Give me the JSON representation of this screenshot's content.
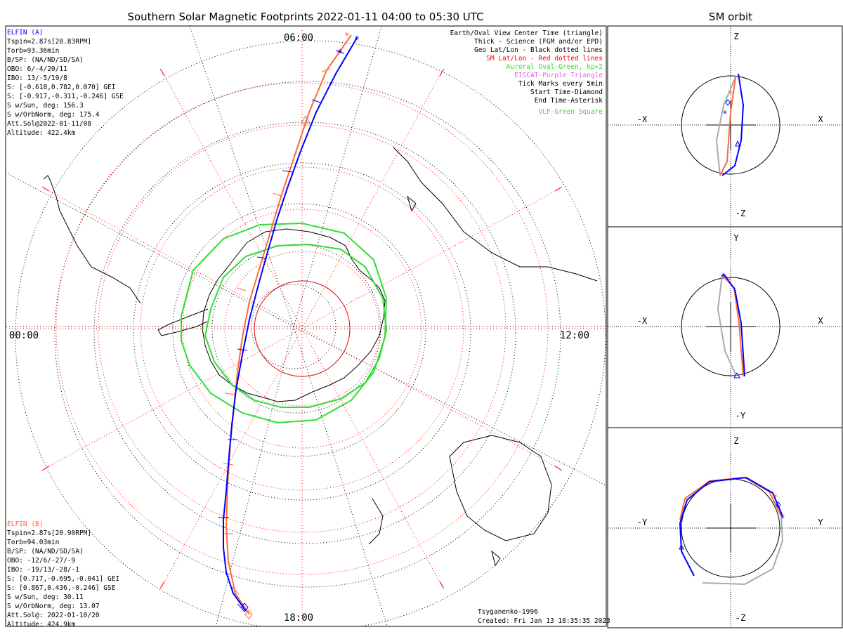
{
  "title": "Southern Solar Magnetic Footprints 2022-01-11 04:00 to 05:30 UTC",
  "side_title": "SM orbit",
  "time_labels": {
    "top": "06:00",
    "left": "00:00",
    "right": "12:00",
    "bottom": "18:00"
  },
  "elfin_a": {
    "name": "ELFIN (A)",
    "color": "#0000ff",
    "lines": [
      "Tspin=2.87s[20.83RPM]",
      "Torb=93.36min",
      "B/SP: (NA/ND/SD/SA)",
      "OBO: 6/-4/20/11",
      "IBO: 13/-5/19/8",
      "S: [-0.618,0.782,0.070] GEI",
      "S: [-0.917,-0.311,-0.246] GSE",
      "S w/Sun, deg: 156.3",
      "S w/OrbNorm, deg: 175.4",
      "Att.Sol@2022-01-11/08",
      "Altitude: 422.4km"
    ]
  },
  "elfin_b": {
    "name": "ELFIN (B)",
    "color": "#ff6a3d",
    "lines": [
      "Tspin=2.87s[20.90RPM]",
      "Torb=94.03min",
      "B/SP: (NA/ND/SD/SA)",
      "OBO: -12/6/-27/-9",
      "IBO: -19/13/-28/-1",
      "S: [0.717,-0.695,-0.041] GEI",
      "S: [0.867,0.436,-0.246] GSE",
      "S w/Sun, deg: 30.11",
      "S w/OrbNorm, deg: 13.07",
      "Att.Sol@: 2022-01-10/20",
      "Altitude: 424.9km"
    ]
  },
  "legend": [
    {
      "text": "Earth/Oval View Center Time (triangle)",
      "color": "#000000"
    },
    {
      "text": "Thick - Science (FGM and/or EPD)",
      "color": "#000000"
    },
    {
      "text": "Geo Lat/Lon - Black dotted lines",
      "color": "#000000"
    },
    {
      "text": "SM Lat/Lon - Red dotted lines",
      "color": "#ff0000"
    },
    {
      "text": "Auroral Oval-Green, kp=2",
      "color": "#33dd33"
    },
    {
      "text": "EISCAT-Purple Triangle",
      "color": "#dd66dd"
    },
    {
      "text": "Tick Marks every 5min",
      "color": "#000000"
    },
    {
      "text": "Start Time-Diamond",
      "color": "#000000"
    },
    {
      "text": "End Time-Asterisk",
      "color": "#000000"
    },
    {
      "text": "VLF-Green Square",
      "color": "#33dd33"
    }
  ],
  "footer": {
    "model": "Tsyganenko-1996",
    "created": "Created: Fri Jan 13 18:35:35 2023"
  },
  "panels": [
    {
      "name": "xz",
      "top": "Z",
      "bottom": "-Z",
      "left": "-X",
      "right": "X"
    },
    {
      "name": "xy",
      "top": "Y",
      "bottom": "-Y",
      "left": "-X",
      "right": "X"
    },
    {
      "name": "yz",
      "top": "Z",
      "bottom": "-Z",
      "left": "-Y",
      "right": "Y"
    }
  ],
  "chart_data": {
    "type": "polar-map",
    "title": "Southern Solar Magnetic Footprints 2022-01-11 04:00 to 05:30 UTC",
    "radial_units": "degrees colatitude from magnetic pole",
    "sm_colatitude_circles": [
      10,
      20,
      30,
      40,
      50,
      60,
      70
    ],
    "sm_mlt_spokes_hours": [
      0,
      2,
      4,
      6,
      8,
      10,
      12,
      14,
      16,
      18,
      20,
      22
    ],
    "auroral_oval_kp": 2,
    "colors": {
      "elfin_a": "#0000ff",
      "elfin_b": "#ff6a3d",
      "oval": "#33dd33",
      "sm_grid": "#ff0000",
      "geo_grid": "#000000"
    }
  }
}
